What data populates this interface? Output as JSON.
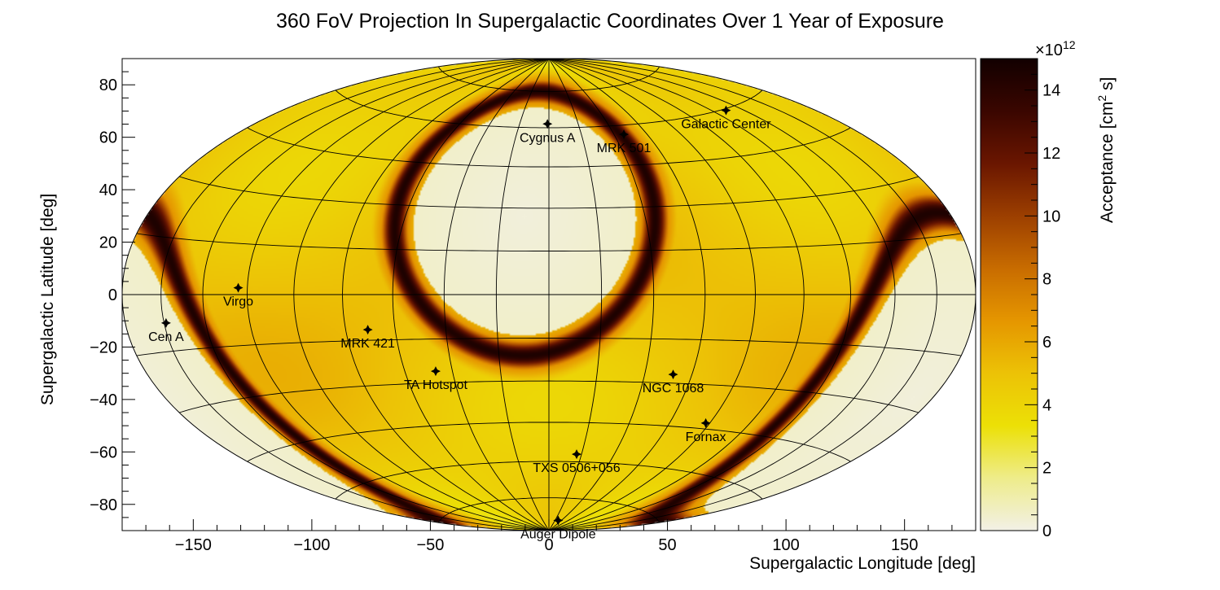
{
  "chart_data": {
    "type": "heatmap",
    "projection": "hammer-aitoff",
    "title": "360 FoV Projection In Supergalactic Coordinates Over 1 Year of Exposure",
    "xlabel": "Supergalactic Longitude [deg]",
    "ylabel": "Supergalactic Latitude [deg]",
    "xlim": [
      -180,
      180
    ],
    "ylim": [
      -90,
      90
    ],
    "x_ticks": [
      -150,
      -100,
      -50,
      0,
      50,
      100,
      150
    ],
    "x_tick_labels": [
      "−150",
      "−100",
      "−50",
      "0",
      "50",
      "100",
      "150"
    ],
    "y_ticks": [
      80,
      60,
      40,
      20,
      0,
      -20,
      -40,
      -60,
      -80
    ],
    "y_tick_labels": [
      "80",
      "60",
      "40",
      "20",
      "0",
      "−20",
      "−40",
      "−60",
      "−80"
    ],
    "colorbar": {
      "label": "Acceptance [cm",
      "label_sup": "2",
      "label_end": " s]",
      "exponent_prefix": "×10",
      "exponent_power": "12",
      "range": [
        0,
        15
      ],
      "ticks": [
        0,
        2,
        4,
        6,
        8,
        10,
        12,
        14
      ],
      "tick_labels": [
        "0",
        "2",
        "4",
        "6",
        "8",
        "10",
        "12",
        "14"
      ],
      "colors": [
        "#f2f0e6",
        "#eeec8a",
        "#ece006",
        "#ecc206",
        "#e59600",
        "#c86c00",
        "#9c3f00",
        "#6a1600",
        "#3a0600",
        "#120000"
      ]
    },
    "grid": true,
    "graticule": {
      "lon_step_deg": 20,
      "lat_lines_deg": [
        -75,
        -60,
        -45,
        -30,
        -15,
        0,
        15,
        30,
        45,
        60,
        75
      ]
    },
    "sources": [
      {
        "name": "Cygnus A",
        "lon": -1,
        "lat": 61.5
      },
      {
        "name": "MRK 501",
        "lon": 46,
        "lat": 56.5
      },
      {
        "name": "Galactic Center",
        "lon": 129,
        "lat": 59.5
      },
      {
        "name": "Virgo",
        "lon": -124,
        "lat": 2
      },
      {
        "name": "Cen A",
        "lon": -159,
        "lat": -7.5
      },
      {
        "name": "MRK 421",
        "lon": -71,
        "lat": -11.5
      },
      {
        "name": "TA Hotspot",
        "lon": -47,
        "lat": -26
      },
      {
        "name": "NGC 1068",
        "lon": 52,
        "lat": -27
      },
      {
        "name": "Fornax",
        "lon": 78,
        "lat": -43
      },
      {
        "name": "TXS 0506+056",
        "lon": 17,
        "lat": -57
      },
      {
        "name": "Auger Dipole",
        "lon": 30,
        "lat": -85
      }
    ],
    "acceptance_features": [
      {
        "description": "blind spot",
        "lon": -10,
        "lat": 27,
        "radius_deg": 41,
        "value": 0
      },
      {
        "description": "ring edge",
        "lon": -10,
        "lat": 27,
        "radius_deg": 48,
        "value": 14.5
      },
      {
        "description": "blind spot",
        "lon": 170,
        "lat": -27,
        "radius_deg": 41,
        "value": 0
      },
      {
        "description": "ring edge",
        "lon": 170,
        "lat": -27,
        "radius_deg": 48,
        "value": 14.5
      }
    ],
    "background_value": 4.5
  }
}
